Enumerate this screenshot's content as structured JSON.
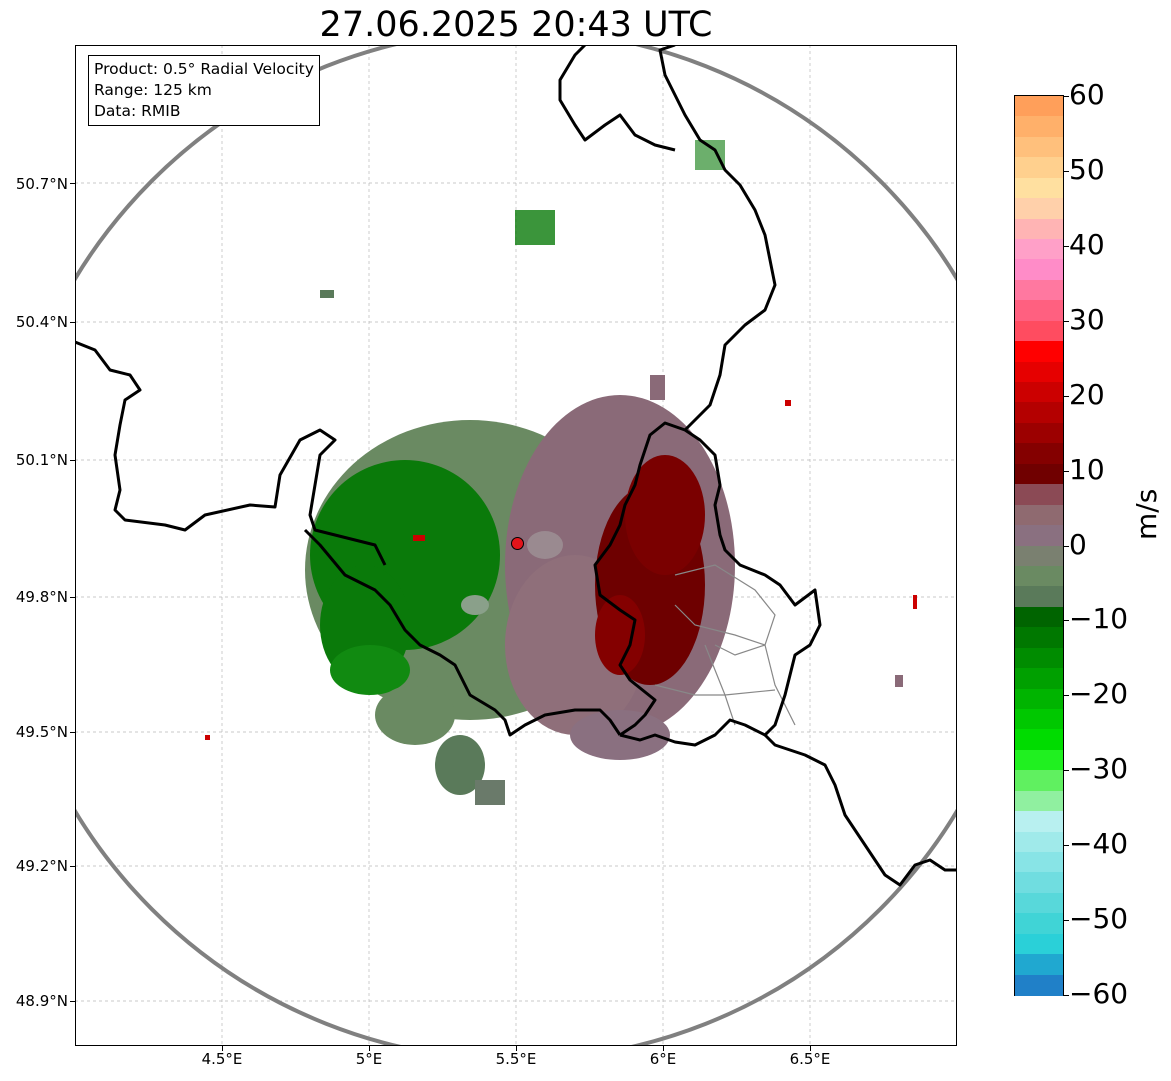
{
  "title": "27.06.2025 20:43 UTC",
  "infobox": {
    "product": "Product: 0.5° Radial Velocity",
    "range": "Range: 125 km",
    "data": "Data: RMIB"
  },
  "map_axes": {
    "y_ticks": [
      "50.7°N",
      "50.4°N",
      "50.1°N",
      "49.8°N",
      "49.5°N",
      "49.2°N",
      "48.9°N"
    ],
    "x_ticks": [
      "4.5°E",
      "5°E",
      "5.5°E",
      "6°E",
      "6.5°E"
    ]
  },
  "colorbar": {
    "label": "m/s",
    "ticks": [
      "60",
      "50",
      "40",
      "30",
      "20",
      "10",
      "0",
      "−10",
      "−20",
      "−30",
      "−40",
      "−50",
      "−60"
    ],
    "range": [
      -60,
      60
    ],
    "colors": [
      "#ff9f5a",
      "#ffb06a",
      "#ffc07c",
      "#ffd08e",
      "#ffe0a0",
      "#ffd0aa",
      "#ffb4b4",
      "#ffa0c8",
      "#ff8cc8",
      "#ff78a0",
      "#ff6080",
      "#ff4c60",
      "#ff0000",
      "#e60000",
      "#cc0000",
      "#b40000",
      "#9c0000",
      "#840000",
      "#700000",
      "#8b4a55",
      "#8f6a70",
      "#8a7080",
      "#7a8070",
      "#6a8a62",
      "#5a7a5a",
      "#006400",
      "#007800",
      "#008c00",
      "#00a000",
      "#00b400",
      "#00c800",
      "#00dc00",
      "#20f020",
      "#60f060",
      "#90f0a0",
      "#b8f0f0",
      "#a0eaea",
      "#88e4e6",
      "#70dde0",
      "#58d8da",
      "#40d4d6",
      "#2ad0d8",
      "#20a8d0",
      "#2080c8"
    ]
  },
  "radar_site": {
    "name": "radar site marker"
  },
  "colors": {
    "approach": "#5a7a5a",
    "recede": "#8a6a78",
    "strong_recede": "#6e0000",
    "strong_approach": "#0a7a0a",
    "range_ring": "#808080",
    "border": "#000000"
  }
}
